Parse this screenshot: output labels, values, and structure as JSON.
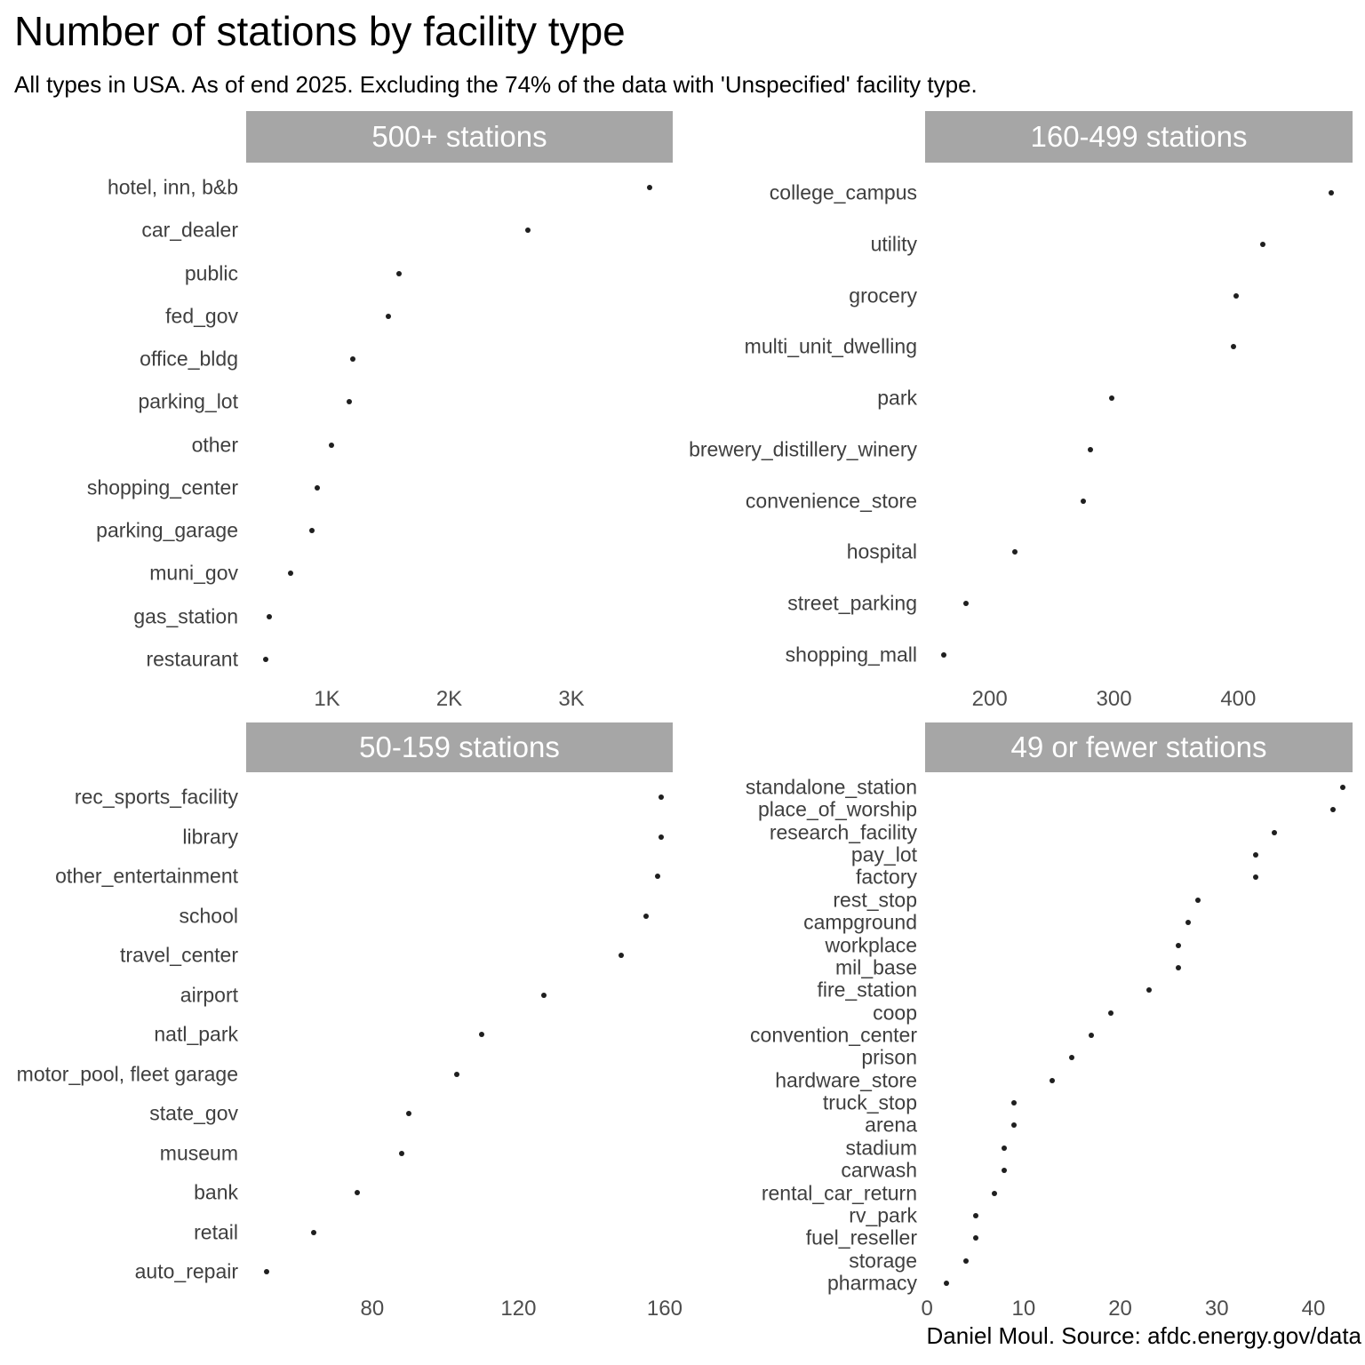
{
  "title": "Number of stations by facility type",
  "subtitle": "All types in USA. As of end 2025. Excluding the 74% of the data with 'Unspecified' facility type.",
  "caption": "Daniel Moul. Source: afdc.energy.gov/data",
  "colors": {
    "facet_bar": "#a6a6a6",
    "facet_title_text": "#ffffff",
    "dot": "#1f1f1f",
    "category_label": "#3f3f3f",
    "tick_label": "#4d4d4d",
    "title_text": "#000000"
  },
  "chart_data": [
    {
      "type": "scatter",
      "title": "500+ stations",
      "orientation": "horizontal-dot-plot",
      "categories": [
        "hotel, inn, b&b",
        "car_dealer",
        "public",
        "fed_gov",
        "office_bldg",
        "parking_lot",
        "other",
        "shopping_center",
        "parking_garage",
        "muni_gov",
        "gas_station",
        "restaurant"
      ],
      "values": [
        3640,
        2640,
        1590,
        1500,
        1210,
        1185,
        1035,
        920,
        875,
        700,
        530,
        500
      ],
      "xticks": [
        {
          "label": "1K",
          "value": 1000
        },
        {
          "label": "2K",
          "value": 2000
        },
        {
          "label": "3K",
          "value": 3000
        }
      ],
      "xlabel": "",
      "xlim": [
        338,
        3829
      ],
      "grid": false
    },
    {
      "type": "scatter",
      "title": "160-499 stations",
      "orientation": "horizontal-dot-plot",
      "categories": [
        "college_campus",
        "utility",
        "grocery",
        "multi_unit_dwelling",
        "park",
        "brewery_distillery_winery",
        "convenience_store",
        "hospital",
        "street_parking",
        "shopping_mall"
      ],
      "values": [
        475,
        420,
        398,
        396,
        298,
        281,
        275,
        220,
        181,
        163
      ],
      "xticks": [
        {
          "label": "200",
          "value": 200
        },
        {
          "label": "300",
          "value": 300
        },
        {
          "label": "400",
          "value": 400
        }
      ],
      "xlabel": "",
      "xlim": [
        148,
        492
      ],
      "grid": false
    },
    {
      "type": "scatter",
      "title": "50-159 stations",
      "orientation": "horizontal-dot-plot",
      "categories": [
        "rec_sports_facility",
        "library",
        "other_entertainment",
        "school",
        "travel_center",
        "airport",
        "natl_park",
        "motor_pool, fleet garage",
        "state_gov",
        "museum",
        "bank",
        "retail",
        "auto_repair"
      ],
      "values": [
        159,
        159,
        158,
        155,
        148,
        127,
        110,
        103,
        90,
        88,
        76,
        64,
        51
      ],
      "xticks": [
        {
          "label": "80",
          "value": 80
        },
        {
          "label": "120",
          "value": 120
        },
        {
          "label": "160",
          "value": 160
        }
      ],
      "xlabel": "",
      "xlim": [
        45.5,
        162.2
      ],
      "grid": false
    },
    {
      "type": "scatter",
      "title": "49 or fewer stations",
      "orientation": "horizontal-dot-plot",
      "categories": [
        "standalone_station",
        "place_of_worship",
        "research_facility",
        "pay_lot",
        "factory",
        "rest_stop",
        "campground",
        "workplace",
        "mil_base",
        "fire_station",
        "coop",
        "convention_center",
        "prison",
        "hardware_store",
        "truck_stop",
        "arena",
        "stadium",
        "carwash",
        "rental_car_return",
        "rv_park",
        "fuel_reseller",
        "storage",
        "pharmacy"
      ],
      "values": [
        43,
        42,
        36,
        34,
        34,
        28,
        27,
        26,
        26,
        23,
        19,
        17,
        15,
        13,
        9,
        9,
        8,
        8,
        7,
        5,
        5,
        4,
        2
      ],
      "xticks": [
        {
          "label": "0",
          "value": 0
        },
        {
          "label": "10",
          "value": 10
        },
        {
          "label": "20",
          "value": 20
        },
        {
          "label": "30",
          "value": 30
        },
        {
          "label": "40",
          "value": 40
        }
      ],
      "xlabel": "",
      "xlim": [
        -0.2,
        44.05
      ],
      "grid": false
    }
  ]
}
